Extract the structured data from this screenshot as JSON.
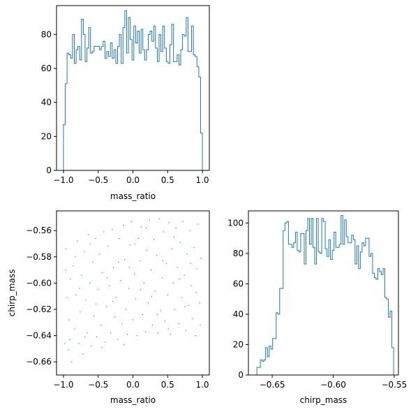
{
  "colors": {
    "series": "#1f77b4",
    "axis": "#000000",
    "background": "#ffffff"
  },
  "panels": {
    "top_left": {
      "xlabel": "mass_ratio",
      "ylabel": ""
    },
    "bottom_left": {
      "xlabel": "mass_ratio",
      "ylabel": "chirp_mass"
    },
    "bottom_right": {
      "xlabel": "chirp_mass",
      "ylabel": ""
    }
  },
  "chart_data": [
    {
      "type": "bar",
      "subtype": "step-histogram",
      "title": "",
      "xlabel": "mass_ratio",
      "ylabel": "",
      "xlim": [
        -1.1,
        1.1
      ],
      "ylim": [
        0,
        97
      ],
      "xticks": [
        -1.0,
        -0.5,
        0.0,
        0.5,
        1.0
      ],
      "xtick_labels": [
        "−1.0",
        "−0.5",
        "0.0",
        "0.5",
        "1.0"
      ],
      "yticks": [
        0,
        20,
        40,
        60,
        80
      ],
      "ytick_labels": [
        "0",
        "20",
        "40",
        "60",
        "80"
      ],
      "bin_range": [
        -1.0,
        1.0
      ],
      "counts": [
        27,
        51,
        69,
        68,
        66,
        80,
        63,
        71,
        73,
        65,
        89,
        80,
        64,
        72,
        84,
        69,
        70,
        73,
        73,
        73,
        71,
        73,
        76,
        66,
        70,
        67,
        75,
        66,
        71,
        63,
        73,
        80,
        63,
        84,
        94,
        69,
        90,
        77,
        65,
        85,
        75,
        82,
        69,
        83,
        71,
        65,
        71,
        80,
        82,
        76,
        85,
        72,
        64,
        80,
        70,
        85,
        72,
        64,
        63,
        74,
        86,
        64,
        64,
        68,
        62,
        71,
        80,
        79,
        90,
        70,
        70,
        85,
        68,
        67,
        61,
        55,
        22
      ]
    },
    {
      "type": "scatter",
      "title": "",
      "xlabel": "mass_ratio",
      "ylabel": "chirp_mass",
      "xlim": [
        -1.1,
        1.1
      ],
      "ylim": [
        -0.67,
        -0.545
      ],
      "xticks": [
        -1.0,
        -0.5,
        0.0,
        0.5,
        1.0
      ],
      "xtick_labels": [
        "−1.0",
        "−0.5",
        "0.0",
        "0.5",
        "1.0"
      ],
      "yticks": [
        -0.66,
        -0.64,
        -0.62,
        -0.6,
        -0.58,
        -0.56
      ],
      "ytick_labels": [
        "−0.66",
        "−0.64",
        "−0.62",
        "−0.60",
        "−0.58",
        "−0.56"
      ],
      "points": [
        [
          -0.98,
          -0.646
        ],
        [
          -0.96,
          -0.574
        ],
        [
          -0.95,
          -0.611
        ],
        [
          -0.93,
          -0.651
        ],
        [
          -0.92,
          -0.628
        ],
        [
          -0.9,
          -0.597
        ],
        [
          -0.88,
          -0.66
        ],
        [
          -0.86,
          -0.587
        ],
        [
          -0.84,
          -0.635
        ],
        [
          -0.82,
          -0.609
        ],
        [
          -0.8,
          -0.568
        ],
        [
          -0.78,
          -0.646
        ],
        [
          -0.76,
          -0.622
        ],
        [
          -0.74,
          -0.594
        ],
        [
          -0.72,
          -0.654
        ],
        [
          -0.7,
          -0.576
        ],
        [
          -0.68,
          -0.613
        ],
        [
          -0.66,
          -0.638
        ],
        [
          -0.64,
          -0.563
        ],
        [
          -0.62,
          -0.6
        ],
        [
          -0.6,
          -0.648
        ],
        [
          -0.58,
          -0.584
        ],
        [
          -0.56,
          -0.625
        ],
        [
          -0.54,
          -0.566
        ],
        [
          -0.52,
          -0.641
        ],
        [
          -0.5,
          -0.605
        ],
        [
          -0.48,
          -0.578
        ],
        [
          -0.46,
          -0.632
        ],
        [
          -0.44,
          -0.592
        ],
        [
          -0.42,
          -0.561
        ],
        [
          -0.4,
          -0.645
        ],
        [
          -0.38,
          -0.618
        ],
        [
          -0.36,
          -0.572
        ],
        [
          -0.34,
          -0.602
        ],
        [
          -0.32,
          -0.638
        ],
        [
          -0.3,
          -0.559
        ],
        [
          -0.28,
          -0.588
        ],
        [
          -0.26,
          -0.626
        ],
        [
          -0.24,
          -0.611
        ],
        [
          -0.22,
          -0.643
        ],
        [
          -0.2,
          -0.566
        ],
        [
          -0.18,
          -0.598
        ],
        [
          -0.16,
          -0.631
        ],
        [
          -0.14,
          -0.556
        ],
        [
          -0.12,
          -0.582
        ],
        [
          -0.1,
          -0.62
        ],
        [
          -0.08,
          -0.639
        ],
        [
          -0.06,
          -0.604
        ],
        [
          -0.04,
          -0.571
        ],
        [
          -0.02,
          -0.553
        ],
        [
          0.0,
          -0.628
        ],
        [
          0.02,
          -0.593
        ],
        [
          0.04,
          -0.612
        ],
        [
          0.06,
          -0.64
        ],
        [
          0.08,
          -0.566
        ],
        [
          0.1,
          -0.583
        ],
        [
          0.12,
          -0.557
        ],
        [
          0.14,
          -0.624
        ],
        [
          0.16,
          -0.6
        ],
        [
          0.18,
          -0.637
        ],
        [
          0.2,
          -0.575
        ],
        [
          0.22,
          -0.615
        ],
        [
          0.24,
          -0.552
        ],
        [
          0.26,
          -0.59
        ],
        [
          0.28,
          -0.632
        ],
        [
          0.3,
          -0.567
        ],
        [
          0.32,
          -0.606
        ],
        [
          0.34,
          -0.579
        ],
        [
          0.36,
          -0.638
        ],
        [
          0.38,
          -0.551
        ],
        [
          0.4,
          -0.621
        ],
        [
          0.42,
          -0.596
        ],
        [
          0.44,
          -0.561
        ],
        [
          0.46,
          -0.629
        ],
        [
          0.48,
          -0.585
        ],
        [
          0.5,
          -0.609
        ],
        [
          0.52,
          -0.554
        ],
        [
          0.54,
          -0.639
        ],
        [
          0.56,
          -0.574
        ],
        [
          0.58,
          -0.6
        ],
        [
          0.6,
          -0.62
        ],
        [
          0.62,
          -0.558
        ],
        [
          0.64,
          -0.588
        ],
        [
          0.66,
          -0.631
        ],
        [
          0.68,
          -0.569
        ],
        [
          0.7,
          -0.611
        ],
        [
          0.72,
          -0.553
        ],
        [
          0.74,
          -0.594
        ],
        [
          0.76,
          -0.636
        ],
        [
          0.78,
          -0.578
        ],
        [
          0.8,
          -0.617
        ],
        [
          0.82,
          -0.56
        ],
        [
          0.84,
          -0.602
        ],
        [
          0.86,
          -0.627
        ],
        [
          0.88,
          -0.573
        ],
        [
          0.9,
          -0.64
        ],
        [
          0.92,
          -0.589
        ],
        [
          0.94,
          -0.555
        ],
        [
          0.96,
          -0.615
        ],
        [
          0.98,
          -0.581
        ],
        [
          -0.97,
          -0.59
        ],
        [
          -0.91,
          -0.643
        ],
        [
          -0.83,
          -0.58
        ],
        [
          -0.77,
          -0.604
        ],
        [
          -0.69,
          -0.641
        ],
        [
          -0.61,
          -0.57
        ],
        [
          -0.53,
          -0.616
        ],
        [
          -0.45,
          -0.649
        ],
        [
          -0.37,
          -0.596
        ],
        [
          -0.29,
          -0.614
        ],
        [
          -0.21,
          -0.584
        ],
        [
          -0.13,
          -0.647
        ],
        [
          -0.05,
          -0.588
        ],
        [
          0.03,
          -0.57
        ],
        [
          0.11,
          -0.605
        ],
        [
          0.19,
          -0.558
        ],
        [
          0.27,
          -0.61
        ],
        [
          0.35,
          -0.624
        ],
        [
          0.43,
          -0.583
        ],
        [
          0.51,
          -0.635
        ],
        [
          0.59,
          -0.565
        ],
        [
          0.67,
          -0.597
        ],
        [
          0.75,
          -0.618
        ],
        [
          0.83,
          -0.585
        ],
        [
          0.91,
          -0.607
        ],
        [
          0.97,
          -0.632
        ]
      ]
    },
    {
      "type": "bar",
      "subtype": "step-histogram",
      "title": "",
      "xlabel": "chirp_mass",
      "ylabel": "",
      "xlim": [
        -0.6695,
        -0.5465
      ],
      "ylim": [
        0,
        108
      ],
      "xticks": [
        -0.65,
        -0.6,
        -0.55
      ],
      "xtick_labels": [
        "−0.65",
        "−0.60",
        "−0.55"
      ],
      "yticks": [
        0,
        20,
        40,
        60,
        80,
        100
      ],
      "ytick_labels": [
        "0",
        "20",
        "40",
        "60",
        "80",
        "100"
      ],
      "bin_range": [
        -0.664,
        -0.549
      ],
      "counts": [
        0,
        5,
        5,
        10,
        9,
        10,
        18,
        12,
        19,
        17,
        24,
        24,
        41,
        40,
        57,
        57,
        95,
        100,
        101,
        86,
        86,
        84,
        87,
        94,
        82,
        81,
        93,
        93,
        73,
        95,
        103,
        86,
        103,
        84,
        73,
        103,
        81,
        80,
        103,
        101,
        83,
        78,
        89,
        76,
        82,
        94,
        84,
        84,
        86,
        105,
        86,
        102,
        91,
        87,
        87,
        92,
        89,
        73,
        85,
        70,
        81,
        87,
        85,
        90,
        90,
        78,
        80,
        67,
        64,
        63,
        70,
        68,
        66,
        70,
        51,
        50,
        38,
        42,
        18,
        0
      ]
    }
  ]
}
